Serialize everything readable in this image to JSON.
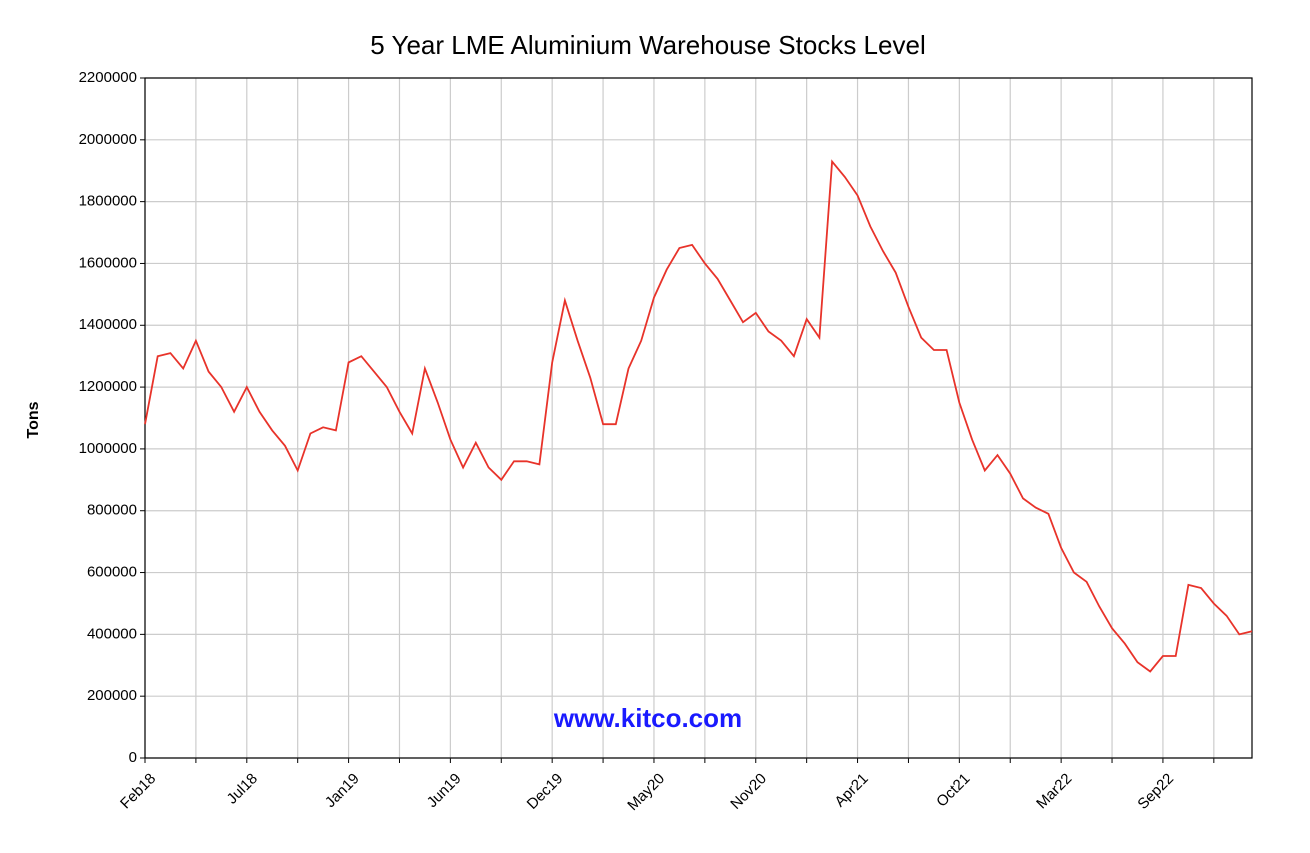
{
  "chart_data": {
    "type": "line",
    "title": "5 Year LME Aluminium Warehouse Stocks Level",
    "y_label": "Tons",
    "annotation": "www.kitco.com",
    "categories": [
      "Feb18",
      null,
      null,
      null,
      null,
      null,
      null,
      null,
      "Jul18",
      null,
      null,
      null,
      null,
      null,
      null,
      null,
      "Jan19",
      null,
      null,
      null,
      null,
      null,
      null,
      null,
      "Jun19",
      null,
      null,
      null,
      null,
      null,
      null,
      null,
      "Dec19",
      null,
      null,
      null,
      null,
      null,
      null,
      null,
      "May20",
      null,
      null,
      null,
      null,
      null,
      null,
      null,
      "Nov20",
      null,
      null,
      null,
      null,
      null,
      null,
      null,
      "Apr21",
      null,
      null,
      null,
      null,
      null,
      null,
      null,
      "Oct21",
      null,
      null,
      null,
      null,
      null,
      null,
      null,
      "Mar22",
      null,
      null,
      null,
      null,
      null,
      null,
      null,
      "Sep22",
      null,
      null,
      null,
      null,
      null,
      null,
      null
    ],
    "series": [
      {
        "name": "Tons",
        "color": "#e8332a",
        "values": [
          1080000,
          1300000,
          1310000,
          1260000,
          1350000,
          1250000,
          1200000,
          1120000,
          1200000,
          1120000,
          1060000,
          1010000,
          930000,
          1050000,
          1070000,
          1060000,
          1280000,
          1300000,
          1250000,
          1200000,
          1120000,
          1050000,
          1260000,
          1150000,
          1030000,
          940000,
          1020000,
          940000,
          900000,
          960000,
          960000,
          950000,
          1280000,
          1480000,
          1350000,
          1230000,
          1080000,
          1080000,
          1260000,
          1350000,
          1490000,
          1580000,
          1650000,
          1660000,
          1600000,
          1550000,
          1480000,
          1410000,
          1440000,
          1380000,
          1350000,
          1300000,
          1420000,
          1360000,
          1930000,
          1880000,
          1820000,
          1720000,
          1640000,
          1570000,
          1460000,
          1360000,
          1320000,
          1320000,
          1150000,
          1030000,
          930000,
          980000,
          920000,
          840000,
          810000,
          790000,
          680000,
          600000,
          570000,
          490000,
          420000,
          370000,
          310000,
          280000,
          330000,
          330000,
          560000,
          550000,
          500000,
          460000,
          400000,
          410000
        ]
      }
    ],
    "ylim": [
      0,
      2200000
    ],
    "yticks": [
      0,
      200000,
      400000,
      600000,
      800000,
      1000000,
      1200000,
      1400000,
      1600000,
      1800000,
      2000000,
      2200000
    ],
    "grid": true
  }
}
